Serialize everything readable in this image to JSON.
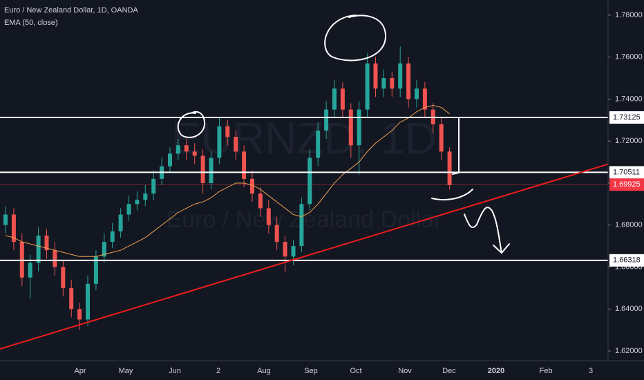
{
  "chart_data": {
    "type": "candlestick",
    "title": "Euro / New Zealand Dollar, 1D, OANDA",
    "watermark": {
      "symbol": "EURNZD, 1D",
      "description": "Euro / New Zealand Dollar"
    },
    "up_color": "#26a69a",
    "down_color": "#ef5350",
    "ohlc": {
      "open": [
        1.68,
        1.685,
        1.672,
        1.655,
        1.662,
        1.675,
        1.668,
        1.66,
        1.65,
        1.64,
        1.635,
        1.652,
        1.665,
        1.672,
        1.677,
        1.685,
        1.69,
        1.692,
        1.695,
        1.702,
        1.708,
        1.714,
        1.718,
        1.715,
        1.713,
        1.7,
        1.712,
        1.727,
        1.722,
        1.715,
        1.702,
        1.695,
        1.688,
        1.68,
        1.672,
        1.665,
        1.67,
        1.69,
        1.712,
        1.725,
        1.735,
        1.745,
        1.735,
        1.718,
        1.735,
        1.757,
        1.745,
        1.75,
        1.745,
        1.757,
        1.74,
        1.745,
        1.735,
        1.728,
        1.715
      ],
      "high": [
        1.689,
        1.688,
        1.676,
        1.666,
        1.679,
        1.678,
        1.672,
        1.663,
        1.654,
        1.643,
        1.656,
        1.668,
        1.676,
        1.681,
        1.688,
        1.694,
        1.696,
        1.699,
        1.706,
        1.712,
        1.717,
        1.721,
        1.721,
        1.719,
        1.716,
        1.715,
        1.731,
        1.73,
        1.725,
        1.718,
        1.706,
        1.698,
        1.692,
        1.684,
        1.675,
        1.673,
        1.693,
        1.716,
        1.729,
        1.739,
        1.749,
        1.748,
        1.738,
        1.739,
        1.762,
        1.76,
        1.754,
        1.753,
        1.765,
        1.76,
        1.749,
        1.748,
        1.738,
        1.731,
        1.717
      ],
      "low": [
        1.676,
        1.668,
        1.651,
        1.645,
        1.658,
        1.664,
        1.656,
        1.646,
        1.636,
        1.63,
        1.632,
        1.649,
        1.662,
        1.669,
        1.674,
        1.682,
        1.687,
        1.689,
        1.692,
        1.699,
        1.705,
        1.711,
        1.711,
        1.709,
        1.695,
        1.697,
        1.709,
        1.718,
        1.711,
        1.698,
        1.691,
        1.684,
        1.676,
        1.668,
        1.6575,
        1.661,
        1.667,
        1.687,
        1.708,
        1.721,
        1.731,
        1.731,
        1.712,
        1.704,
        1.731,
        1.741,
        1.741,
        1.741,
        1.741,
        1.736,
        1.736,
        1.731,
        1.724,
        1.711,
        1.697
      ],
      "close": [
        1.685,
        1.672,
        1.655,
        1.662,
        1.675,
        1.668,
        1.66,
        1.65,
        1.64,
        1.635,
        1.652,
        1.665,
        1.672,
        1.677,
        1.685,
        1.69,
        1.692,
        1.695,
        1.702,
        1.708,
        1.714,
        1.718,
        1.715,
        1.713,
        1.7,
        1.712,
        1.727,
        1.722,
        1.715,
        1.702,
        1.695,
        1.688,
        1.68,
        1.672,
        1.665,
        1.67,
        1.69,
        1.712,
        1.725,
        1.735,
        1.745,
        1.735,
        1.718,
        1.735,
        1.757,
        1.745,
        1.75,
        1.745,
        1.757,
        1.74,
        1.745,
        1.735,
        1.728,
        1.715,
        1.699
      ]
    },
    "indicator": {
      "name": "EMA (50, close)",
      "color": "#f0a050",
      "values": [
        1.675,
        1.674,
        1.672,
        1.671,
        1.67,
        1.669,
        1.668,
        1.667,
        1.666,
        1.665,
        1.665,
        1.665,
        1.666,
        1.667,
        1.668,
        1.67,
        1.672,
        1.674,
        1.677,
        1.68,
        1.683,
        1.686,
        1.688,
        1.69,
        1.691,
        1.693,
        1.696,
        1.698,
        1.7,
        1.7,
        1.699,
        1.697,
        1.694,
        1.691,
        1.688,
        1.685,
        1.684,
        1.686,
        1.69,
        1.695,
        1.7,
        1.704,
        1.707,
        1.71,
        1.715,
        1.719,
        1.722,
        1.725,
        1.729,
        1.731,
        1.734,
        1.736,
        1.737,
        1.736,
        1.733
      ]
    },
    "levels": [
      {
        "value": 1.73125,
        "color": "#ffffff"
      },
      {
        "value": 1.70511,
        "color": "#ffffff"
      },
      {
        "value": 1.66318,
        "color": "#ffffff"
      }
    ],
    "last_price": {
      "value": 1.69925,
      "color": "#f23645"
    },
    "trendline": {
      "start": 1.621,
      "end": 1.709,
      "color": "#f01c1c"
    },
    "categories": [
      "Apr",
      "May",
      "Jun",
      "2",
      "Aug",
      "Sep",
      "Oct",
      "Nov",
      "Dec",
      "2020",
      "Feb",
      "3"
    ],
    "ylim": [
      1.6154,
      1.7872
    ],
    "yticks": [
      {
        "value": 1.62,
        "label": "1.62000"
      },
      {
        "value": 1.64,
        "label": "1.64000"
      },
      {
        "value": 1.66,
        "label": "1.66000"
      },
      {
        "value": 1.68,
        "label": "1.68000"
      },
      {
        "value": 1.7,
        "label": "1.70000"
      },
      {
        "value": 1.72,
        "label": "1.72000"
      },
      {
        "value": 1.74,
        "label": "1.74000"
      },
      {
        "value": 1.76,
        "label": "1.76000"
      },
      {
        "value": 1.78,
        "label": "1.78000"
      }
    ]
  }
}
